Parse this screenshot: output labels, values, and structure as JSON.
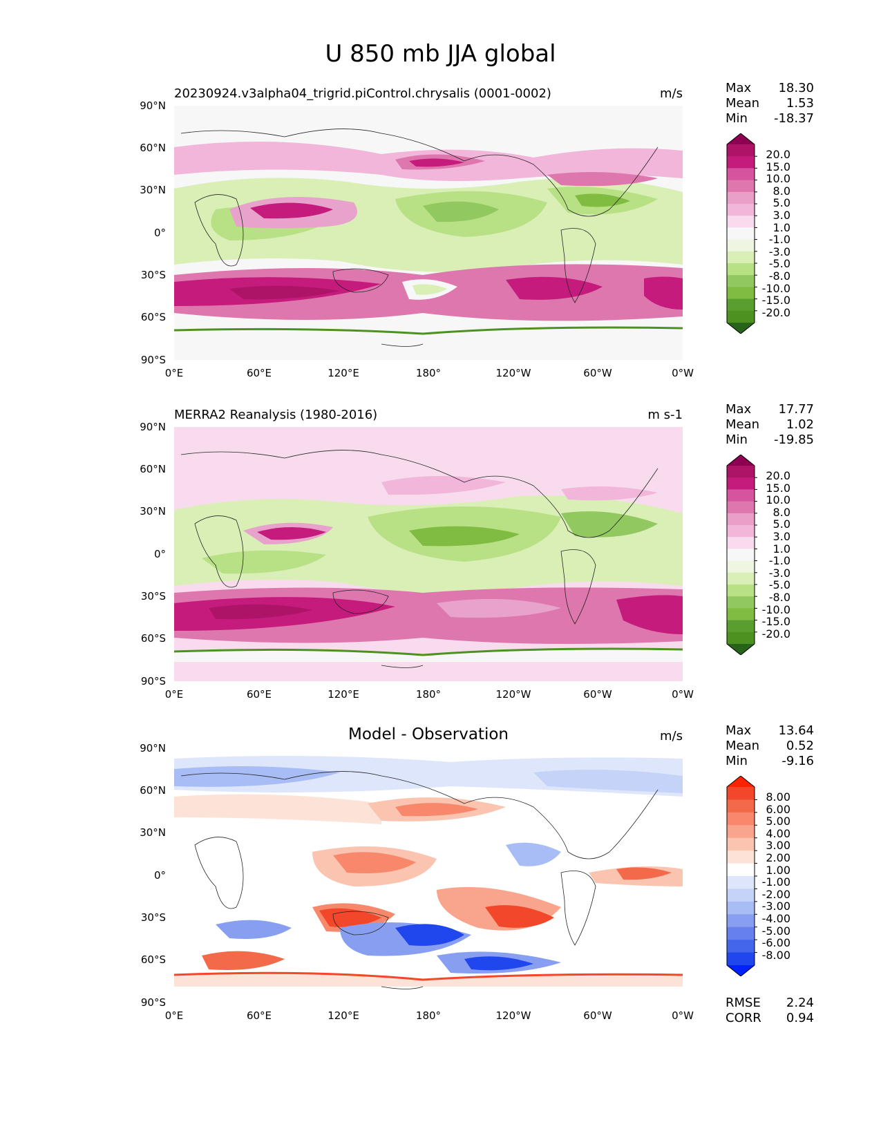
{
  "figure_title": "U 850 mb JJA global",
  "x_ticks": [
    "0°E",
    "60°E",
    "120°E",
    "180°",
    "120°W",
    "60°W",
    "0°W"
  ],
  "y_ticks": [
    "90°N",
    "60°N",
    "30°N",
    "0°",
    "30°S",
    "60°S",
    "90°S"
  ],
  "panels": [
    {
      "title": "20230924.v3alpha04_trigrid.piControl.chrysalis (0001-0002)",
      "units": "m/s",
      "stats": {
        "max_label": "Max",
        "max": "18.30",
        "mean_label": "Mean",
        "mean": "1.53",
        "min_label": "Min",
        "min": "-18.37"
      },
      "colorbar": {
        "levels": [
          "20.0",
          "15.0",
          "10.0",
          "8.0",
          "5.0",
          "3.0",
          "1.0",
          "-1.0",
          "-3.0",
          "-5.0",
          "-8.0",
          "-10.0",
          "-15.0",
          "-20.0"
        ],
        "colors": [
          "#8e0152",
          "#ad1366",
          "#c51b7d",
          "#d5549d",
          "#de77ae",
          "#ea9fc9",
          "#f1b6da",
          "#f8dced",
          "#f7f7f7",
          "#eef5e1",
          "#d9efb6",
          "#b8e186",
          "#91c85f",
          "#7fbc41",
          "#5a9e2f",
          "#4d9221",
          "#276419"
        ]
      }
    },
    {
      "title": "MERRA2 Reanalysis (1980-2016)",
      "units": "m s-1",
      "stats": {
        "max_label": "Max",
        "max": "17.77",
        "mean_label": "Mean",
        "mean": "1.02",
        "min_label": "Min",
        "min": "-19.85"
      },
      "colorbar": {
        "levels": [
          "20.0",
          "15.0",
          "10.0",
          "8.0",
          "5.0",
          "3.0",
          "1.0",
          "-1.0",
          "-3.0",
          "-5.0",
          "-8.0",
          "-10.0",
          "-15.0",
          "-20.0"
        ],
        "colors": [
          "#8e0152",
          "#ad1366",
          "#c51b7d",
          "#d5549d",
          "#de77ae",
          "#ea9fc9",
          "#f1b6da",
          "#f8dced",
          "#f7f7f7",
          "#eef5e1",
          "#d9efb6",
          "#b8e186",
          "#91c85f",
          "#7fbc41",
          "#5a9e2f",
          "#4d9221",
          "#276419"
        ]
      }
    },
    {
      "title": "Model - Observation",
      "units": "m/s",
      "stats": {
        "max_label": "Max",
        "max": "13.64",
        "mean_label": "Mean",
        "mean": "0.52",
        "min_label": "Min",
        "min": "-9.16"
      },
      "metrics": {
        "rmse_label": "RMSE",
        "rmse": "2.24",
        "corr_label": "CORR",
        "corr": "0.94"
      },
      "colorbar": {
        "levels": [
          "8.00",
          "6.00",
          "5.00",
          "4.00",
          "3.00",
          "2.00",
          "1.00",
          "-1.00",
          "-2.00",
          "-3.00",
          "-4.00",
          "-5.00",
          "-6.00",
          "-8.00"
        ],
        "colors": [
          "#ff2200",
          "#f2472a",
          "#f36a4a",
          "#f7886b",
          "#f9a58d",
          "#fbc4b1",
          "#fde2d8",
          "#ffffff",
          "#dee6fb",
          "#c5d3f8",
          "#a8bcf5",
          "#889ff1",
          "#6681ec",
          "#4466ea",
          "#2047ee",
          "#0022ff"
        ]
      }
    }
  ]
}
